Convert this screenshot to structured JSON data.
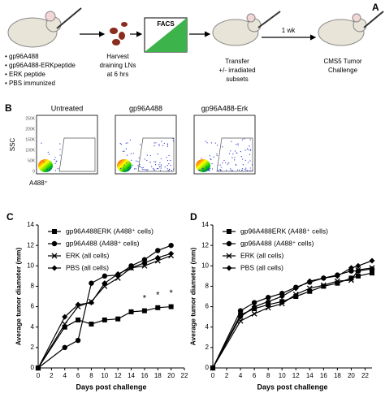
{
  "panel_a": {
    "label": "A",
    "groups": [
      "gp96A488",
      "gp96A488-ERKpeptide",
      "ERK peptide",
      "PBS immunized"
    ],
    "harvest": [
      "Harvest",
      "draining LNs",
      "at 6 hrs"
    ],
    "facs": "FACS",
    "transfer": [
      "Transfer",
      "+/- irradiated",
      "subsets"
    ],
    "interval": "1 wk",
    "challenge": [
      "CMS5 Tumor",
      "Challenge"
    ]
  },
  "panel_b": {
    "label": "B",
    "plots": [
      "Untreated",
      "gp96A488",
      "gp96A488-Erk"
    ],
    "y_label": "SSC",
    "x_label": "A488⁺",
    "y_tick_labels": [
      "250K",
      "200K",
      "150K",
      "100K",
      "50K",
      "0"
    ]
  },
  "chart_data": [
    {
      "type": "line",
      "label": "C",
      "x_label": "Days post challenge",
      "y_label": "Average tumor diameter (mm)",
      "x": [
        0,
        4,
        6,
        8,
        10,
        12,
        14,
        16,
        18,
        20
      ],
      "xlim": [
        0,
        22
      ],
      "xticks": [
        0,
        2,
        4,
        6,
        8,
        10,
        12,
        14,
        16,
        18,
        20,
        22
      ],
      "ylim": [
        0,
        14
      ],
      "yticks": [
        0,
        2,
        4,
        6,
        8,
        10,
        12,
        14
      ],
      "series": [
        {
          "name": "gp96A488ERK (A488⁺ cells)",
          "marker": "square",
          "color": "#000000",
          "values": [
            0,
            4.0,
            4.7,
            4.3,
            4.7,
            4.8,
            5.5,
            5.6,
            5.9,
            6.0
          ]
        },
        {
          "name": "gp96A488 (A488⁺ cells)",
          "marker": "circle",
          "color": "#000000",
          "values": [
            0,
            2.0,
            2.7,
            8.3,
            9.0,
            9.1,
            10.0,
            10.6,
            11.5,
            12.0
          ]
        },
        {
          "name": "ERK (all cells)",
          "marker": "x",
          "color": "#000000",
          "values": [
            0,
            4.3,
            6.0,
            6.5,
            8.0,
            8.8,
            9.8,
            10.0,
            10.5,
            11.0
          ]
        },
        {
          "name": "PBS (all cells)",
          "marker": "diamond",
          "color": "#000000",
          "values": [
            0,
            5.0,
            6.2,
            6.4,
            8.3,
            9.2,
            9.8,
            10.3,
            10.8,
            11.2
          ]
        }
      ],
      "annotations": [
        {
          "text": "*",
          "x": 16,
          "y": 6.8
        },
        {
          "text": "*",
          "x": 18,
          "y": 7.1
        },
        {
          "text": "*",
          "x": 20,
          "y": 7.3
        }
      ]
    },
    {
      "type": "line",
      "label": "D",
      "x_label": "Days post challenge",
      "y_label": "Average tumor diameter (mm)",
      "x": [
        0,
        4,
        6,
        8,
        10,
        12,
        14,
        16,
        18,
        20,
        21,
        23
      ],
      "xlim": [
        0,
        23
      ],
      "xticks": [
        0,
        2,
        4,
        6,
        8,
        10,
        12,
        14,
        16,
        18,
        20,
        22
      ],
      "ylim": [
        0,
        14
      ],
      "yticks": [
        0,
        2,
        4,
        6,
        8,
        10,
        12,
        14
      ],
      "series": [
        {
          "name": "gp96A488ERK (A488⁺ cells)",
          "marker": "square",
          "color": "#000000",
          "values": [
            0,
            5.2,
            5.8,
            6.2,
            6.5,
            7.0,
            7.5,
            8.0,
            8.3,
            8.8,
            9.0,
            9.3
          ]
        },
        {
          "name": "gp96A488 (A488⁺ cells)",
          "marker": "circle",
          "color": "#000000",
          "values": [
            0,
            5.6,
            6.4,
            6.9,
            7.3,
            7.9,
            8.4,
            8.8,
            9.1,
            9.5,
            9.5,
            9.7
          ]
        },
        {
          "name": "ERK (all cells)",
          "marker": "x",
          "color": "#000000",
          "values": [
            0,
            4.6,
            5.3,
            5.9,
            6.3,
            7.2,
            7.8,
            8.1,
            8.5,
            8.6,
            9.6,
            9.8
          ]
        },
        {
          "name": "PBS (all cells)",
          "marker": "diamond",
          "color": "#000000",
          "values": [
            0,
            5.0,
            6.0,
            6.5,
            7.0,
            7.8,
            8.5,
            8.8,
            9.0,
            9.8,
            10.0,
            10.5
          ]
        }
      ]
    }
  ]
}
